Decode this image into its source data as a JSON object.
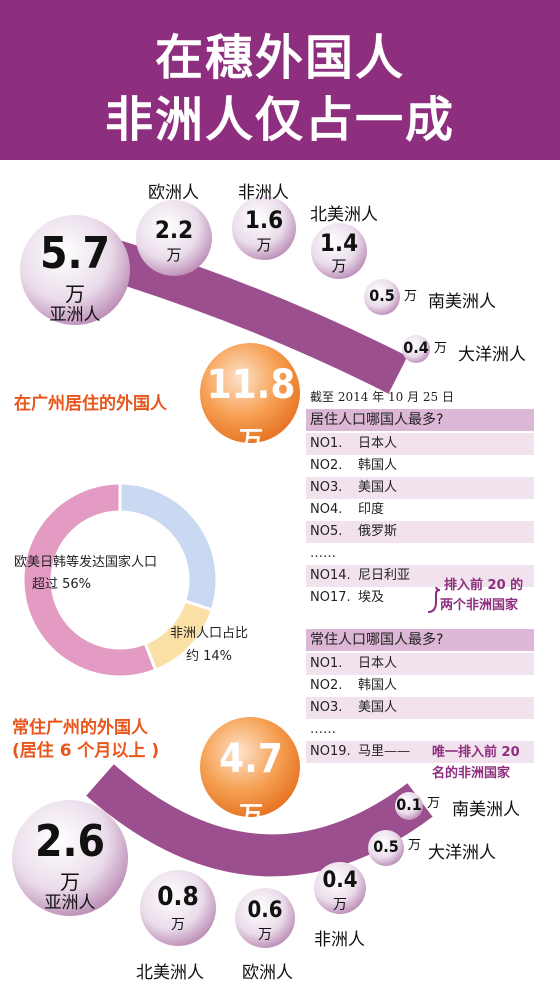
{
  "header": {
    "line1": "在穗外国人",
    "line2": "非洲人仅占一成"
  },
  "total_section": {
    "label": "在广州居住的外国人",
    "value": "11.8",
    "unit": "万",
    "date_note": "截至 2014 年 10 月 25 日"
  },
  "resident_section": {
    "label_line1": "常住广州的外国人",
    "label_line2": "(居住 6 个月以上 )",
    "value": "4.7",
    "unit": "万"
  },
  "top_regions": [
    {
      "value": "5.7",
      "unit": "万",
      "name": "亚洲人"
    },
    {
      "value": "2.2",
      "unit": "万",
      "name": "欧洲人"
    },
    {
      "value": "1.6",
      "unit": "万",
      "name": "非洲人"
    },
    {
      "value": "1.4",
      "unit": "万",
      "name": "北美洲人"
    },
    {
      "value": "0.5",
      "unit": "万",
      "name": "南美洲人"
    },
    {
      "value": "0.4",
      "unit": "万",
      "name": "大洋洲人"
    }
  ],
  "bottom_regions": [
    {
      "value": "2.6",
      "unit": "万",
      "name": "亚洲人"
    },
    {
      "value": "0.8",
      "unit": "万",
      "name": "北美洲人"
    },
    {
      "value": "0.6",
      "unit": "万",
      "name": "欧洲人"
    },
    {
      "value": "0.4",
      "unit": "万",
      "name": "非洲人"
    },
    {
      "value": "0.5",
      "unit": "万",
      "name": "大洋洲人"
    },
    {
      "value": "0.1",
      "unit": "万",
      "name": "南美洲人"
    }
  ],
  "donut": {
    "slices": [
      {
        "label_line1": "欧美日韩等发达国家人口",
        "label_line2": "超过 56%",
        "value": 56,
        "color": "#e39bc4"
      },
      {
        "label_line1": "非洲人口占比",
        "label_line2": "约 14%",
        "value": 14,
        "color": "#fbe0a6"
      },
      {
        "value": 30,
        "color": "#c9d9f2"
      }
    ]
  },
  "list1": {
    "title": "居住人口哪国人最多?",
    "rows": [
      {
        "rank": "NO1.",
        "country": "日本人"
      },
      {
        "rank": "NO2.",
        "country": "韩国人"
      },
      {
        "rank": "NO3.",
        "country": "美国人"
      },
      {
        "rank": "NO4.",
        "country": "印度"
      },
      {
        "rank": "NO5.",
        "country": "俄罗斯"
      },
      {
        "rank": "……",
        "country": ""
      },
      {
        "rank": "NO14.",
        "country": "尼日利亚"
      },
      {
        "rank": "NO17.",
        "country": "埃及"
      }
    ],
    "note_line1": "排入前 20 的",
    "note_line2": "两个非洲国家"
  },
  "list2": {
    "title": "常住人口哪国人最多?",
    "rows": [
      {
        "rank": "NO1.",
        "country": "日本人"
      },
      {
        "rank": "NO2.",
        "country": "韩国人"
      },
      {
        "rank": "NO3.",
        "country": "美国人"
      },
      {
        "rank": "……",
        "country": ""
      },
      {
        "rank": "NO19.",
        "country": "马里——"
      }
    ],
    "note_line1": "唯一排入前 20",
    "note_line2": "名的非洲国家"
  },
  "chart_data": [
    {
      "type": "bar",
      "title": "在广州居住的外国人",
      "categories": [
        "亚洲人",
        "欧洲人",
        "非洲人",
        "北美洲人",
        "南美洲人",
        "大洋洲人"
      ],
      "values": [
        5.7,
        2.2,
        1.6,
        1.4,
        0.5,
        0.4
      ]
    },
    {
      "type": "pie",
      "categories": [
        "欧美日韩等发达国家人口",
        "非洲人口占比"
      ],
      "values": [
        56,
        14
      ]
    },
    {
      "type": "bar",
      "title": "常住广州的外国人",
      "categories": [
        "亚洲人",
        "北美洲人",
        "欧洲人",
        "非洲人",
        "大洋洲人",
        "南美洲人"
      ],
      "values": [
        2.6,
        0.8,
        0.6,
        0.4,
        0.5,
        0.1
      ]
    }
  ]
}
